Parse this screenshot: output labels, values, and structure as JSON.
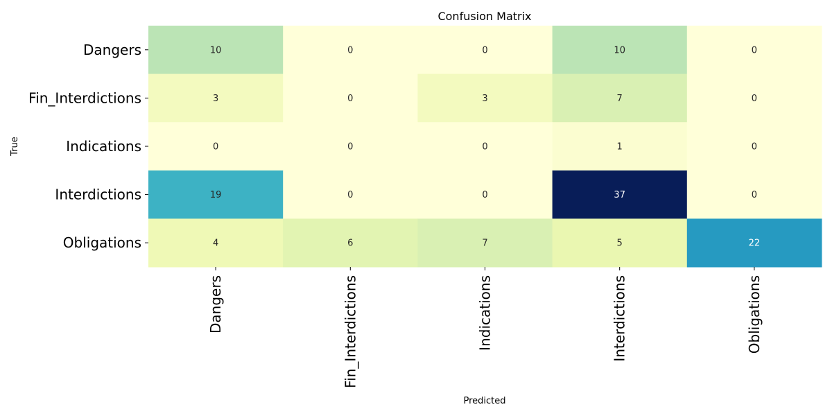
{
  "chart_data": {
    "type": "heatmap",
    "title": "Confusion Matrix",
    "xlabel": "Predicted",
    "ylabel": "True",
    "x_categories": [
      "Dangers",
      "Fin_Interdictions",
      "Indications",
      "Interdictions",
      "Obligations"
    ],
    "y_categories": [
      "Dangers",
      "Fin_Interdictions",
      "Indications",
      "Interdictions",
      "Obligations"
    ],
    "values": [
      [
        10,
        0,
        0,
        10,
        0
      ],
      [
        3,
        0,
        3,
        7,
        0
      ],
      [
        0,
        0,
        0,
        1,
        0
      ],
      [
        19,
        0,
        0,
        37,
        0
      ],
      [
        4,
        6,
        7,
        5,
        22
      ]
    ],
    "value_range": [
      0,
      37
    ],
    "colormap": "YlGnBu",
    "colorbar": false,
    "annotations": true
  }
}
